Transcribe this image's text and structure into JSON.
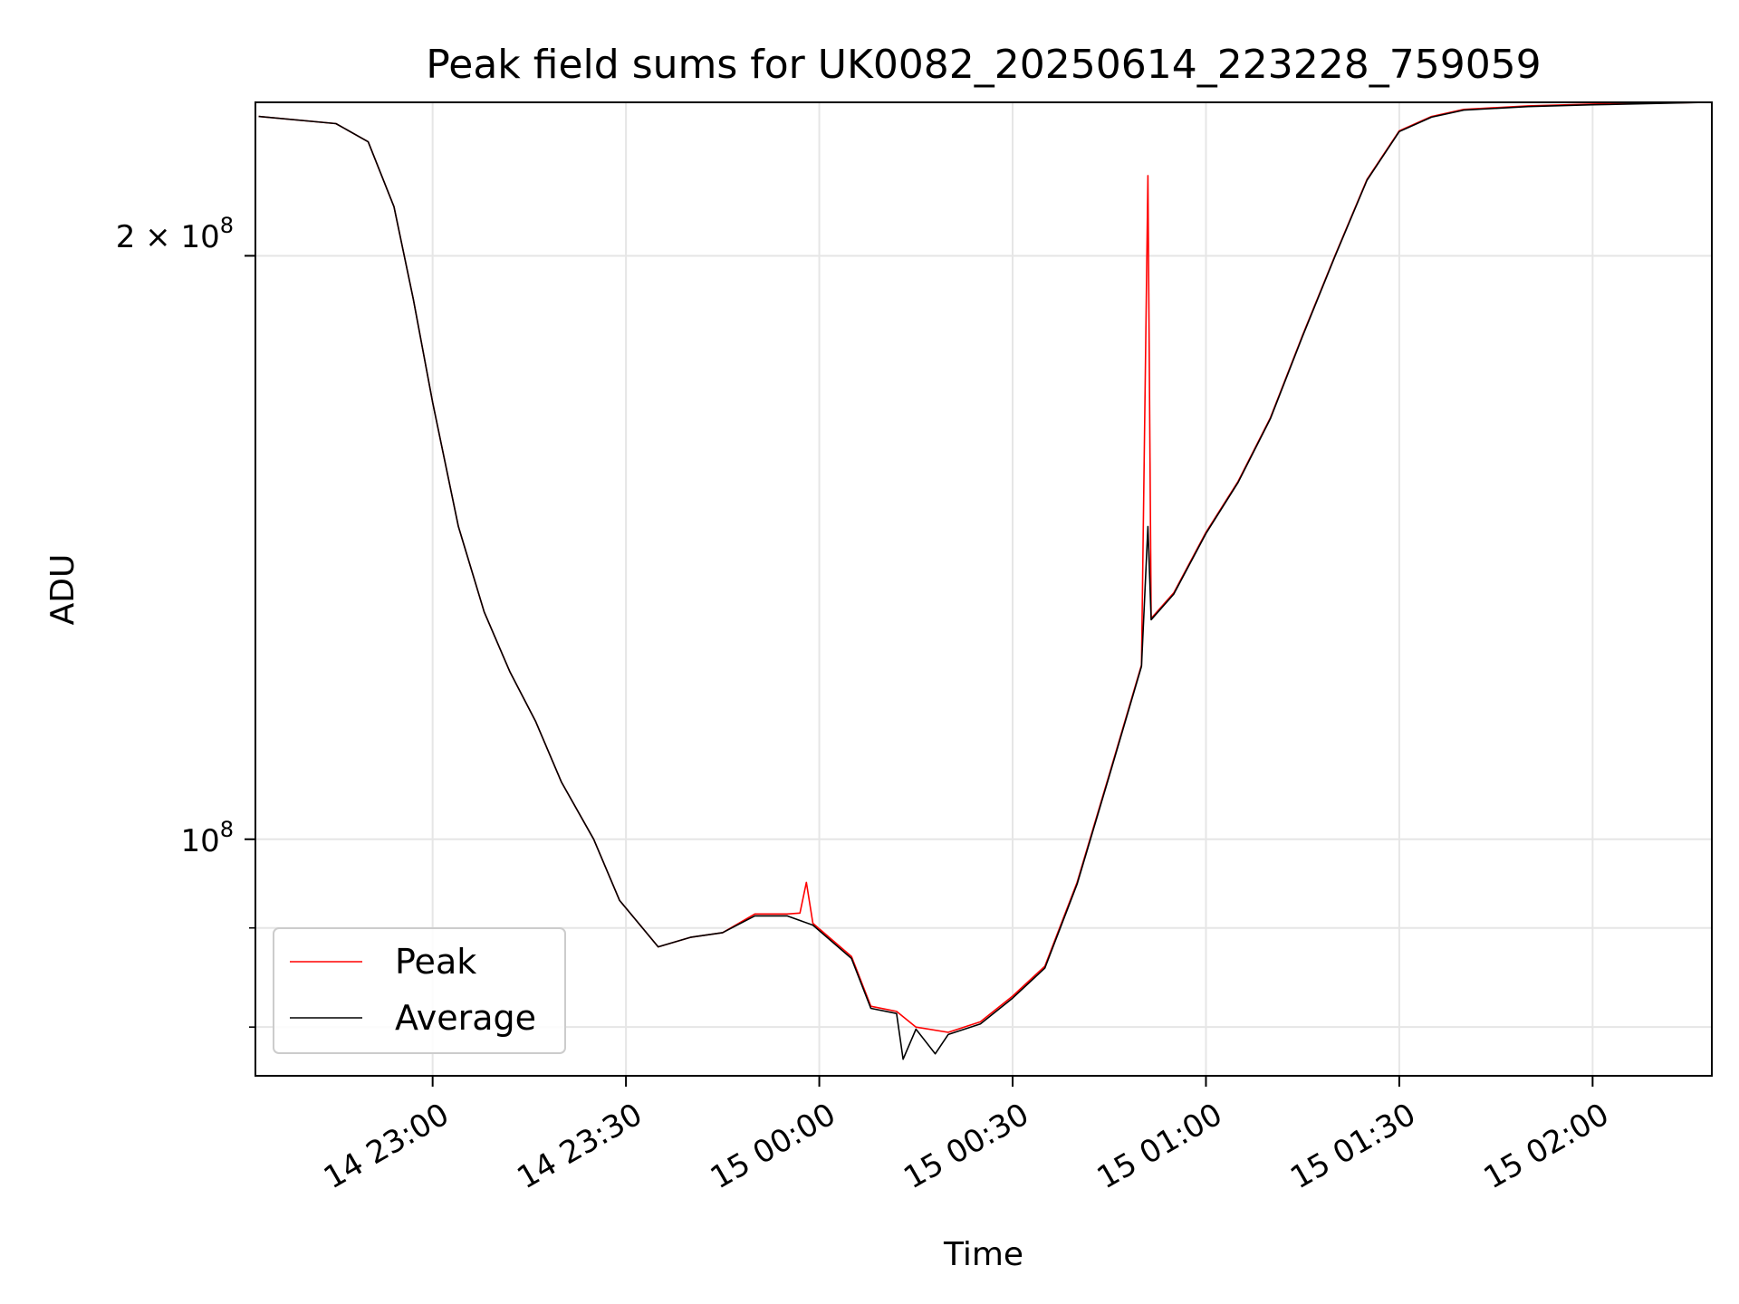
{
  "chart_data": {
    "type": "line",
    "title": "Peak field sums for UK0082_20250614_223228_759059",
    "xlabel": "Time",
    "ylabel": "ADU",
    "y_scale": "log",
    "x_ticks": [
      "14 23:00",
      "14 23:30",
      "15 00:00",
      "15 00:30",
      "15 01:00",
      "15 01:30",
      "15 02:00"
    ],
    "y_tick_labels": {
      "major_2e8": "2 × 10",
      "major_2e8_exp": "8",
      "major_1e8": "10",
      "major_1e8_exp": "8"
    },
    "grid": true,
    "legend_position": "lower-left",
    "colors": {
      "Peak": "#ff0000",
      "Average": "#000000"
    },
    "series": [
      {
        "name": "Peak",
        "points": [
          [
            "22:33",
            236000000
          ],
          [
            "22:45",
            234000000
          ],
          [
            "22:50",
            229000000
          ],
          [
            "22:54",
            212000000
          ],
          [
            "22:57",
            190000000
          ],
          [
            "23:00",
            168000000
          ],
          [
            "23:04",
            145000000
          ],
          [
            "23:08",
            131000000
          ],
          [
            "23:12",
            122000000
          ],
          [
            "23:16",
            115000000
          ],
          [
            "23:20",
            107000000
          ],
          [
            "23:25",
            100000000
          ],
          [
            "23:29",
            93000000
          ],
          [
            "23:35",
            88000000
          ],
          [
            "23:40",
            89000000
          ],
          [
            "23:45",
            89500000
          ],
          [
            "23:50",
            91500000
          ],
          [
            "23:55",
            91500000
          ],
          [
            "23:57",
            91600000
          ],
          [
            "23:58",
            95000000
          ],
          [
            "23:59",
            90500000
          ],
          [
            "00:05",
            87000000
          ],
          [
            "00:08",
            82000000
          ],
          [
            "00:12",
            81500000
          ],
          [
            "00:15",
            80000000
          ],
          [
            "00:20",
            79500000
          ],
          [
            "00:25",
            80500000
          ],
          [
            "00:30",
            83000000
          ],
          [
            "00:35",
            86000000
          ],
          [
            "00:40",
            95000000
          ],
          [
            "00:45",
            108000000
          ],
          [
            "00:50",
            123000000
          ],
          [
            "00:51",
            220000000
          ],
          [
            "00:51.5",
            130000000
          ],
          [
            "00:55",
            134000000
          ],
          [
            "01:00",
            144000000
          ],
          [
            "01:05",
            153000000
          ],
          [
            "01:10",
            165000000
          ],
          [
            "01:15",
            182000000
          ],
          [
            "01:20",
            200000000
          ],
          [
            "01:25",
            219000000
          ],
          [
            "01:30",
            232000000
          ],
          [
            "01:35",
            236000000
          ],
          [
            "01:40",
            238000000
          ],
          [
            "01:50",
            239000000
          ],
          [
            "02:00",
            239500000
          ],
          [
            "02:18",
            240000000
          ]
        ]
      },
      {
        "name": "Average",
        "points": [
          [
            "22:33",
            236000000
          ],
          [
            "22:45",
            234000000
          ],
          [
            "22:50",
            229000000
          ],
          [
            "22:54",
            212000000
          ],
          [
            "22:57",
            190000000
          ],
          [
            "23:00",
            168000000
          ],
          [
            "23:04",
            145000000
          ],
          [
            "23:08",
            131000000
          ],
          [
            "23:12",
            122000000
          ],
          [
            "23:16",
            115000000
          ],
          [
            "23:20",
            107000000
          ],
          [
            "23:25",
            100000000
          ],
          [
            "23:29",
            93000000
          ],
          [
            "23:35",
            88000000
          ],
          [
            "23:40",
            89000000
          ],
          [
            "23:45",
            89500000
          ],
          [
            "23:50",
            91300000
          ],
          [
            "23:55",
            91300000
          ],
          [
            "23:59",
            90300000
          ],
          [
            "00:05",
            86800000
          ],
          [
            "00:08",
            81800000
          ],
          [
            "00:12",
            81300000
          ],
          [
            "00:13",
            77000000
          ],
          [
            "00:15",
            79800000
          ],
          [
            "00:18",
            77500000
          ],
          [
            "00:20",
            79300000
          ],
          [
            "00:25",
            80300000
          ],
          [
            "00:30",
            82800000
          ],
          [
            "00:35",
            85800000
          ],
          [
            "00:40",
            94800000
          ],
          [
            "00:45",
            107800000
          ],
          [
            "00:50",
            122800000
          ],
          [
            "00:51",
            145000000
          ],
          [
            "00:51.5",
            129800000
          ],
          [
            "00:55",
            133800000
          ],
          [
            "01:00",
            143800000
          ],
          [
            "01:05",
            152800000
          ],
          [
            "01:10",
            164800000
          ],
          [
            "01:15",
            181800000
          ],
          [
            "01:20",
            199800000
          ],
          [
            "01:25",
            218800000
          ],
          [
            "01:30",
            231800000
          ],
          [
            "01:35",
            235800000
          ],
          [
            "01:40",
            237800000
          ],
          [
            "01:50",
            238800000
          ],
          [
            "02:00",
            239300000
          ],
          [
            "02:18",
            240000000
          ]
        ]
      }
    ]
  }
}
